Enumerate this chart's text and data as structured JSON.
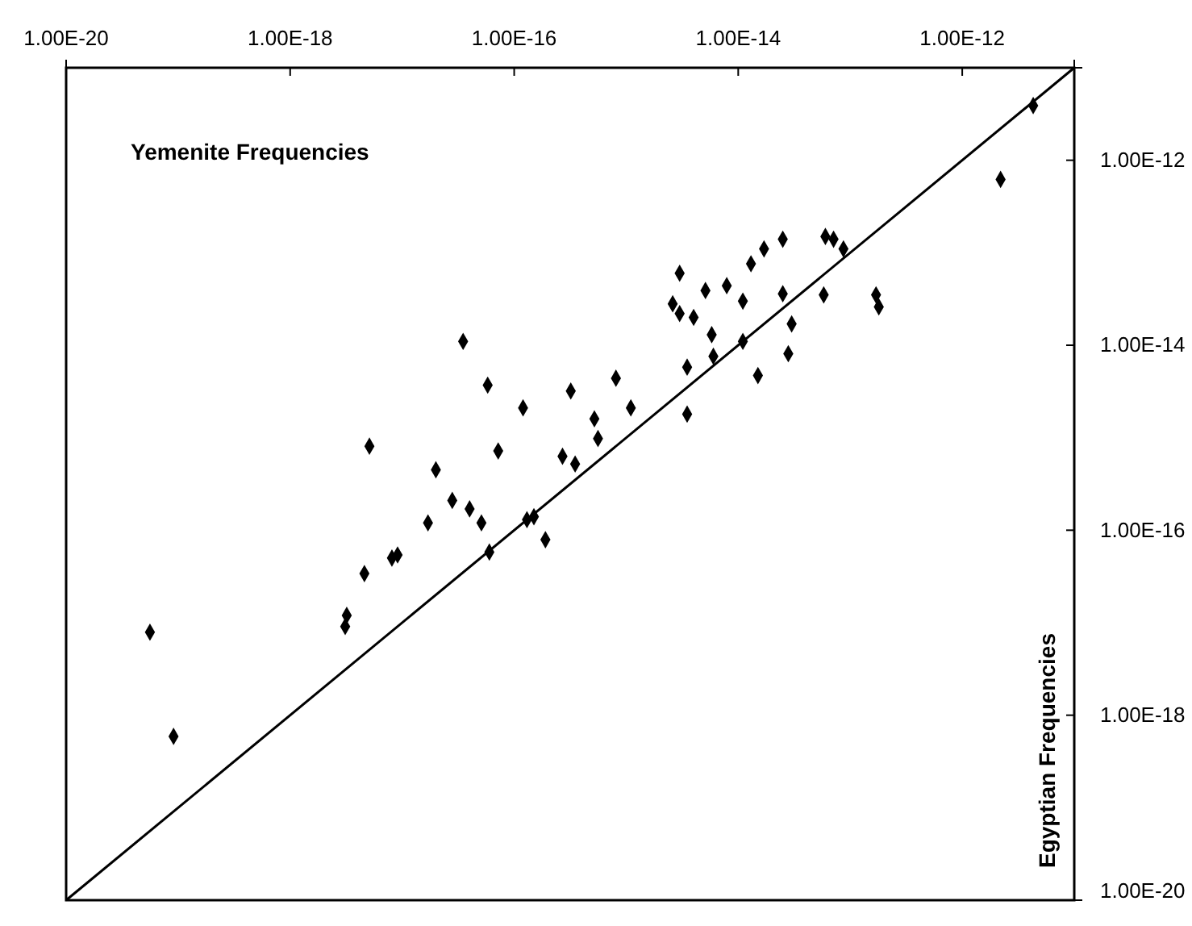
{
  "chart_data": {
    "type": "scatter",
    "xlabel": "Yemenite Frequencies",
    "ylabel": "Egyptian Frequencies",
    "log": "xy",
    "grid": false,
    "xlim": [
      1e-20,
      1e-11
    ],
    "ylim": [
      1e-20,
      1e-11
    ],
    "xticks": [
      {
        "value": 1e-20,
        "label": "1.00E-20"
      },
      {
        "value": 1e-18,
        "label": "1.00E-18"
      },
      {
        "value": 1e-16,
        "label": "1.00E-16"
      },
      {
        "value": 1e-14,
        "label": "1.00E-14"
      },
      {
        "value": 1e-12,
        "label": "1.00E-12"
      }
    ],
    "yticks": [
      {
        "value": 1e-20,
        "label": "1.00E-20"
      },
      {
        "value": 1e-18,
        "label": "1.00E-18"
      },
      {
        "value": 1e-16,
        "label": "1.00E-16"
      },
      {
        "value": 1e-14,
        "label": "1.00E-14"
      },
      {
        "value": 1e-12,
        "label": "1.00E-12"
      }
    ],
    "series": [
      {
        "marker": "diamond",
        "color": "#000000",
        "x": [
          5.6e-20,
          9.1e-20,
          3.1e-18,
          3.2e-18,
          4.6e-18,
          5.1e-18,
          8.1e-18,
          9.1e-18,
          1.7e-17,
          2e-17,
          2.8e-17,
          3.5e-17,
          4e-17,
          5.1e-17,
          5.8e-17,
          6e-17,
          7.2e-17,
          1.2e-16,
          1.3e-16,
          1.5e-16,
          1.9e-16,
          2.7e-16,
          3.2e-16,
          3.5e-16,
          5.2e-16,
          5.6e-16,
          8.1e-16,
          1.1e-15,
          2.6e-15,
          3e-15,
          3e-15,
          3.5e-15,
          3.5e-15,
          4e-15,
          5.1e-15,
          5.8e-15,
          6e-15,
          7.9e-15,
          1.1e-14,
          1.1e-14,
          1.3e-14,
          1.5e-14,
          1.7e-14,
          2.5e-14,
          2.5e-14,
          2.8e-14,
          3e-14,
          5.8e-14,
          6e-14,
          7.1e-14,
          8.7e-14,
          1.7e-13,
          1.8e-13,
          2.2e-12,
          4.3e-12
        ],
        "values": [
          7.9e-18,
          5.9e-19,
          9.1e-18,
          1.2e-17,
          3.4e-17,
          8.1e-16,
          5e-17,
          5.4e-17,
          1.2e-16,
          4.5e-16,
          2.1e-16,
          1.1e-14,
          1.7e-16,
          1.2e-16,
          3.7e-15,
          5.8e-17,
          7.2e-16,
          2.1e-15,
          1.3e-16,
          1.4e-16,
          7.9e-17,
          6.3e-16,
          3.2e-15,
          5.2e-16,
          1.6e-15,
          9.8e-16,
          4.4e-15,
          2.1e-15,
          2.8e-14,
          2.2e-14,
          6e-14,
          5.8e-15,
          1.8e-15,
          2e-14,
          3.9e-14,
          1.3e-14,
          7.6e-15,
          4.4e-14,
          3e-14,
          1.1e-14,
          7.6e-14,
          4.7e-15,
          1.1e-13,
          1.4e-13,
          3.6e-14,
          8.1e-15,
          1.7e-14,
          3.5e-14,
          1.5e-13,
          1.4e-13,
          1.1e-13,
          3.5e-14,
          2.6e-14,
          6.2e-13,
          3.9e-12
        ]
      },
      {
        "type": "line",
        "color": "#000000",
        "x": [
          1e-20,
          1e-11
        ],
        "values": [
          1e-20,
          1e-11
        ]
      }
    ]
  }
}
